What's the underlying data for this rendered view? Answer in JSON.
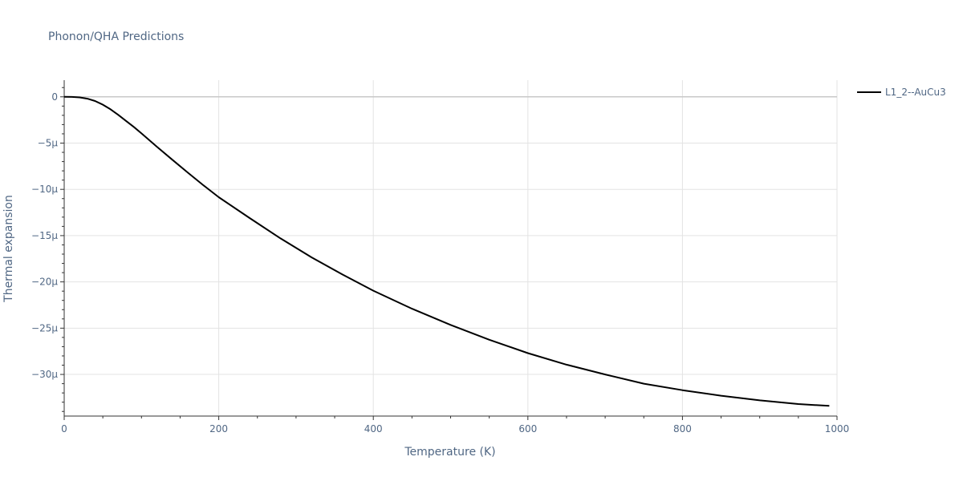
{
  "chart_data": {
    "type": "line",
    "title": "Phonon/QHA Predictions",
    "xlabel": "Temperature (K)",
    "ylabel": "Thermal expansion",
    "xlim": [
      0,
      1000
    ],
    "ylim": [
      -34.5,
      1.8
    ],
    "x_ticks": [
      0,
      200,
      400,
      600,
      800,
      1000
    ],
    "x_tick_labels": [
      "0",
      "200",
      "400",
      "600",
      "800",
      "1000"
    ],
    "y_ticks": [
      0,
      -5,
      -10,
      -15,
      -20,
      -25,
      -30
    ],
    "y_tick_labels": [
      "0",
      "−5μ",
      "−10μ",
      "−15μ",
      "−20μ",
      "−25μ",
      "−30μ"
    ],
    "grid": true,
    "legend_position": "top-right",
    "series": [
      {
        "name": "L1_2--AuCu3",
        "color": "#000000",
        "x": [
          0,
          10,
          20,
          30,
          40,
          50,
          60,
          70,
          80,
          90,
          100,
          120,
          140,
          160,
          180,
          200,
          240,
          280,
          320,
          360,
          400,
          450,
          500,
          550,
          600,
          650,
          700,
          750,
          800,
          850,
          900,
          950,
          990
        ],
        "y": [
          0,
          -0.01,
          -0.06,
          -0.2,
          -0.45,
          -0.85,
          -1.35,
          -1.95,
          -2.6,
          -3.25,
          -3.95,
          -5.4,
          -6.8,
          -8.2,
          -9.55,
          -10.85,
          -13.1,
          -15.3,
          -17.35,
          -19.2,
          -20.95,
          -22.9,
          -24.65,
          -26.25,
          -27.7,
          -28.95,
          -30.0,
          -31.0,
          -31.7,
          -32.3,
          -32.8,
          -33.2,
          -33.4
        ]
      }
    ]
  }
}
